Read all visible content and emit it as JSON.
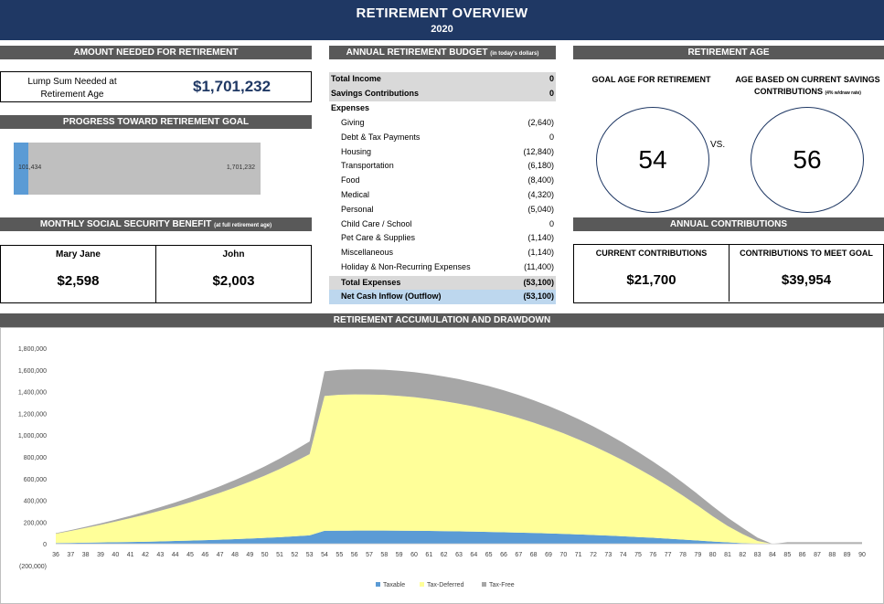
{
  "banner": {
    "title": "RETIREMENT OVERVIEW",
    "year": "2020"
  },
  "amount_needed": {
    "header": "AMOUNT NEEDED FOR RETIREMENT",
    "label_line1": "Lump Sum Needed at",
    "label_line2": "Retirement Age",
    "value": "$1,701,232"
  },
  "progress": {
    "header": "PROGRESS TOWARD RETIREMENT GOAL",
    "current_label": "101,434",
    "goal_label": "1,701,232",
    "fraction": 0.0596
  },
  "social_security": {
    "header": "MONTHLY SOCIAL SECURITY BENEFIT",
    "header_note": "(at full retirement age)",
    "people": [
      {
        "name": "Mary Jane",
        "amount": "$2,598"
      },
      {
        "name": "John",
        "amount": "$2,003"
      }
    ]
  },
  "budget": {
    "header": "ANNUAL RETIREMENT BUDGET",
    "header_note": "(in today's dollars)",
    "total_income": {
      "label": "Total Income",
      "value": "0"
    },
    "savings": {
      "label": "Savings Contributions",
      "value": "0"
    },
    "expenses_label": "Expenses",
    "expenses": [
      {
        "label": "Giving",
        "value": "(2,640)"
      },
      {
        "label": "Debt & Tax Payments",
        "value": "0"
      },
      {
        "label": "Housing",
        "value": "(12,840)"
      },
      {
        "label": "Transportation",
        "value": "(6,180)"
      },
      {
        "label": "Food",
        "value": "(8,400)"
      },
      {
        "label": "Medical",
        "value": "(4,320)"
      },
      {
        "label": "Personal",
        "value": "(5,040)"
      },
      {
        "label": "Child Care / School",
        "value": "0"
      },
      {
        "label": "Pet Care & Supplies",
        "value": "(1,140)"
      },
      {
        "label": "Miscellaneous",
        "value": "(1,140)"
      },
      {
        "label": "Holiday & Non-Recurring Expenses",
        "value": "(11,400)"
      }
    ],
    "total_expenses": {
      "label": "Total Expenses",
      "value": "(53,100)"
    },
    "net_cash": {
      "label": "Net Cash Inflow (Outflow)",
      "value": "(53,100)"
    }
  },
  "retirement_age": {
    "header": "RETIREMENT AGE",
    "goal_label": "GOAL AGE FOR RETIREMENT",
    "goal_age": "54",
    "vs": "VS.",
    "current_label_line1": "AGE BASED ON CURRENT SAVINGS",
    "current_label_line2": "CONTRIBUTIONS",
    "current_label_note": "(4% w/draw rate)",
    "current_age": "56"
  },
  "annual_contributions": {
    "header": "ANNUAL CONTRIBUTIONS",
    "current_label": "CURRENT CONTRIBUTIONS",
    "current_value": "$21,700",
    "goal_label": "CONTRIBUTIONS TO MEET GOAL",
    "goal_value": "$39,954"
  },
  "chart_header": "RETIREMENT ACCUMULATION AND DRAWDOWN",
  "colors": {
    "banner": "#1f3864",
    "header": "#595959",
    "taxable": "#5b9bd5",
    "tax_deferred": "#ffff99",
    "tax_free": "#a6a6a6"
  },
  "chart_data": {
    "type": "area",
    "stacked": true,
    "title": "",
    "xlabel": "",
    "ylabel": "",
    "ylim": [
      -200000,
      1800000
    ],
    "yticks": [
      -200000,
      0,
      200000,
      400000,
      600000,
      800000,
      1000000,
      1200000,
      1400000,
      1600000,
      1800000
    ],
    "ytick_labels": [
      "(200,000)",
      "0",
      "200,000",
      "400,000",
      "600,000",
      "800,000",
      "1,000,000",
      "1,200,000",
      "1,400,000",
      "1,600,000",
      "1,800,000"
    ],
    "x": [
      36,
      37,
      38,
      39,
      40,
      41,
      42,
      43,
      44,
      45,
      46,
      47,
      48,
      49,
      50,
      51,
      52,
      53,
      54,
      55,
      56,
      57,
      58,
      59,
      60,
      61,
      62,
      63,
      64,
      65,
      66,
      67,
      68,
      69,
      70,
      71,
      72,
      73,
      74,
      75,
      76,
      77,
      78,
      79,
      80,
      81,
      82,
      83,
      84,
      85,
      86,
      87,
      88,
      89,
      90
    ],
    "legend_position": "bottom",
    "series": [
      {
        "name": "Taxable",
        "color": "#5b9bd5",
        "values": [
          8000,
          9500,
          11000,
          13000,
          15000,
          17500,
          20000,
          23000,
          26500,
          30000,
          34000,
          38500,
          43500,
          49000,
          55000,
          62000,
          69500,
          78000,
          120000,
          121000,
          122000,
          122000,
          122000,
          121000,
          120000,
          119000,
          117000,
          115000,
          113000,
          110000,
          107000,
          104000,
          100000,
          96000,
          92000,
          87000,
          82000,
          76000,
          70000,
          63000,
          56000,
          48000,
          40000,
          31000,
          22000,
          14000,
          7000,
          2000,
          0,
          0,
          0,
          0,
          0,
          0,
          0
        ]
      },
      {
        "name": "Tax-Deferred",
        "color": "#ffff99",
        "values": [
          85000,
          110000,
          136000,
          162000,
          190000,
          219000,
          250000,
          282000,
          316000,
          352000,
          391000,
          432000,
          476000,
          523000,
          573000,
          627000,
          685000,
          747000,
          1240000,
          1250000,
          1253000,
          1252000,
          1248000,
          1240000,
          1229000,
          1214000,
          1196000,
          1175000,
          1150000,
          1122000,
          1090000,
          1054000,
          1015000,
          972000,
          925000,
          874000,
          819000,
          760000,
          697000,
          630000,
          559000,
          484000,
          404000,
          320000,
          232000,
          150000,
          83000,
          25000,
          0,
          0,
          0,
          0,
          0,
          0,
          0
        ]
      },
      {
        "name": "Tax-Free",
        "color": "#a6a6a6",
        "values": [
          5000,
          7000,
          10000,
          13500,
          17500,
          22000,
          27000,
          32500,
          38500,
          45000,
          52000,
          59500,
          67500,
          76000,
          85000,
          95000,
          106000,
          117000,
          227000,
          229000,
          230000,
          231000,
          231000,
          231000,
          230000,
          229000,
          227000,
          225000,
          222000,
          219000,
          215000,
          211000,
          206000,
          200000,
          194000,
          187000,
          179000,
          171000,
          162000,
          152000,
          142000,
          131000,
          119000,
          106000,
          92000,
          77000,
          58000,
          30000,
          0,
          15000,
          15000,
          15000,
          15000,
          15000,
          15000
        ]
      }
    ]
  }
}
